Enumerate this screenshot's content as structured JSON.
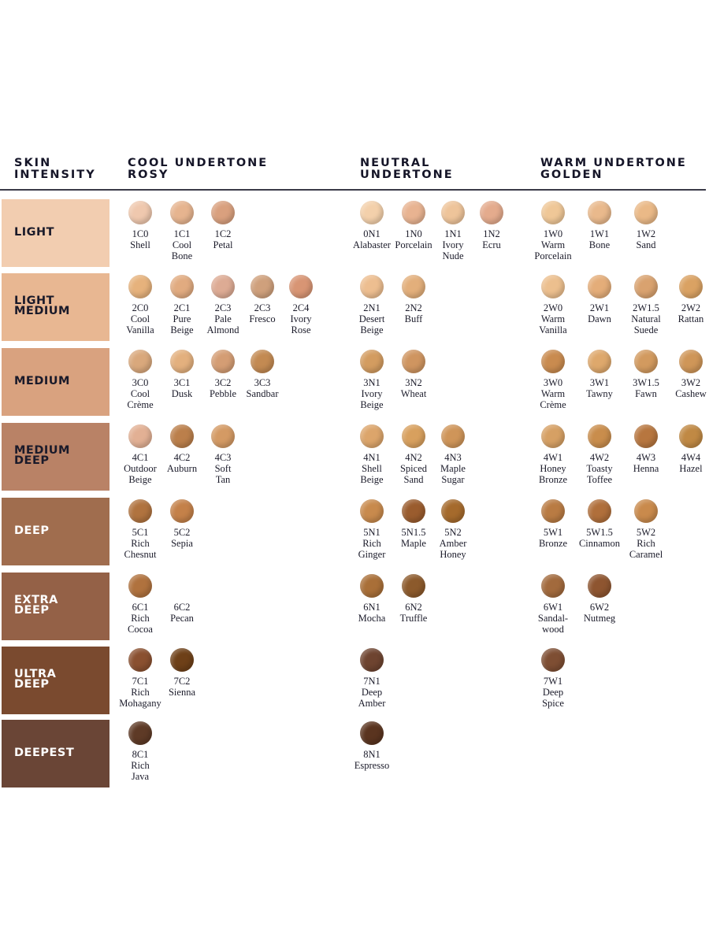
{
  "headers": {
    "skin_intensity": "SKIN\nINTENSITY",
    "cool": "COOL UNDERTONE\nROSY",
    "neutral": "NEUTRAL\nUNDERTONE",
    "warm": "WARM UNDERTONE\nGOLDEN"
  },
  "rows": [
    {
      "label": "LIGHT",
      "color": "#f2cdb0",
      "text_color": "#1a1a2a"
    },
    {
      "label": "LIGHT\nMEDIUM",
      "color": "#e8b792",
      "text_color": "#1a1a2a"
    },
    {
      "label": "MEDIUM",
      "color": "#d9a27f",
      "text_color": "#1a1a2a"
    },
    {
      "label": "MEDIUM\nDEEP",
      "color": "#b98266",
      "text_color": "#1a1a2a"
    },
    {
      "label": "DEEP",
      "color": "#a06d4e",
      "text_color": "#ffffff"
    },
    {
      "label": "EXTRA\nDEEP",
      "color": "#946147",
      "text_color": "#ffffff"
    },
    {
      "label": "ULTRA\nDEEP",
      "color": "#7a4a2f",
      "text_color": "#ffffff"
    },
    {
      "label": "DEEPEST",
      "color": "#6a4536",
      "text_color": "#ffffff"
    }
  ],
  "shades": [
    [
      [
        {
          "code": "1C0",
          "name": "Shell",
          "color": "#efc8ae"
        },
        {
          "code": "1C1",
          "name": "Cool\nBone",
          "color": "#e6b48f"
        },
        {
          "code": "1C2",
          "name": "Petal",
          "color": "#d9a07e"
        }
      ],
      [
        {
          "code": "0N1",
          "name": "Alabaster",
          "color": "#f3d0ab"
        },
        {
          "code": "1N0",
          "name": "Porcelain",
          "color": "#e8b391"
        },
        {
          "code": "1N1",
          "name": "Ivory\nNude",
          "color": "#eec49a"
        },
        {
          "code": "1N2",
          "name": "Ecru",
          "color": "#e4ab8d"
        }
      ],
      [
        {
          "code": "1W0",
          "name": "Warm\nPorcelain",
          "color": "#efc797"
        },
        {
          "code": "1W1",
          "name": "Bone",
          "color": "#e9b98c"
        },
        {
          "code": "1W2",
          "name": "Sand",
          "color": "#eab987"
        }
      ]
    ],
    [
      [
        {
          "code": "2C0",
          "name": "Cool\nVanilla",
          "color": "#e6b27c"
        },
        {
          "code": "2C1",
          "name": "Pure\nBeige",
          "color": "#e1ab80"
        },
        {
          "code": "2C3",
          "name": "Pale\nAlmond",
          "color": "#ddab94"
        },
        {
          "code": "2C3",
          "name": "Fresco",
          "color": "#cfa07c"
        },
        {
          "code": "2C4",
          "name": "Ivory\nRose",
          "color": "#d89574"
        }
      ],
      [
        {
          "code": "2N1",
          "name": "Desert\nBeige",
          "color": "#edbe90"
        },
        {
          "code": "2N2",
          "name": "Buff",
          "color": "#e3af7b"
        }
      ],
      [
        {
          "code": "2W0",
          "name": "Warm\nVanilla",
          "color": "#ecbf8e"
        },
        {
          "code": "2W1",
          "name": "Dawn",
          "color": "#e4ad79"
        },
        {
          "code": "2W1.5",
          "name": "Natural\nSuede",
          "color": "#d9a26f"
        },
        {
          "code": "2W2",
          "name": "Rattan",
          "color": "#daa263"
        }
      ]
    ],
    [
      [
        {
          "code": "3C0",
          "name": "Cool\nCrème",
          "color": "#d9a87c"
        },
        {
          "code": "3C1",
          "name": "Dusk",
          "color": "#e3b07e"
        },
        {
          "code": "3C2",
          "name": "Pebble",
          "color": "#d49d74"
        },
        {
          "code": "3C3",
          "name": "Sandbar",
          "color": "#c38a52"
        }
      ],
      [
        {
          "code": "3N1",
          "name": "Ivory\nBeige",
          "color": "#d39c60"
        },
        {
          "code": "3N2",
          "name": "Wheat",
          "color": "#cf9560"
        }
      ],
      [
        {
          "code": "3W0",
          "name": "Warm\nCrème",
          "color": "#c98b4f"
        },
        {
          "code": "3W1",
          "name": "Tawny",
          "color": "#dea86c"
        },
        {
          "code": "3W1.5",
          "name": "Fawn",
          "color": "#d29a5f"
        },
        {
          "code": "3W2",
          "name": "Cashew",
          "color": "#cf9658"
        }
      ]
    ],
    [
      [
        {
          "code": "4C1",
          "name": "Outdoor\nBeige",
          "color": "#e2b094"
        },
        {
          "code": "4C2",
          "name": "Auburn",
          "color": "#bb7f4b"
        },
        {
          "code": "4C3",
          "name": "Soft\nTan",
          "color": "#d49a64"
        }
      ],
      [
        {
          "code": "4N1",
          "name": "Shell\nBeige",
          "color": "#dca56b"
        },
        {
          "code": "4N2",
          "name": "Spiced\nSand",
          "color": "#d8a05e"
        },
        {
          "code": "4N3",
          "name": "Maple\nSugar",
          "color": "#cf9559"
        }
      ],
      [
        {
          "code": "4W1",
          "name": "Honey\nBronze",
          "color": "#d6a064"
        },
        {
          "code": "4W2",
          "name": "Toasty\nToffee",
          "color": "#c98d4c"
        },
        {
          "code": "4W3",
          "name": "Henna",
          "color": "#b7763f"
        },
        {
          "code": "4W4",
          "name": "Hazel",
          "color": "#c08944"
        }
      ]
    ],
    [
      [
        {
          "code": "5C1",
          "name": "Rich\nChesnut",
          "color": "#b0733f"
        },
        {
          "code": "5C2",
          "name": "Sepia",
          "color": "#c48149"
        }
      ],
      [
        {
          "code": "5N1",
          "name": "Rich\nGinger",
          "color": "#c88a4d"
        },
        {
          "code": "5N1.5",
          "name": "Maple",
          "color": "#9a5c2e"
        },
        {
          "code": "5N2",
          "name": "Amber\nHoney",
          "color": "#a56a2c"
        }
      ],
      [
        {
          "code": "5W1",
          "name": "Bronze",
          "color": "#b97b43"
        },
        {
          "code": "5W1.5",
          "name": "Cinnamon",
          "color": "#b06f3b"
        },
        {
          "code": "5W2",
          "name": "Rich\nCaramel",
          "color": "#c98a4c"
        }
      ]
    ],
    [
      [
        {
          "code": "6C1",
          "name": "Rich\nCocoa",
          "color": "#b0723e"
        },
        {
          "code": "6C2",
          "name": "Pecan",
          "color": null
        }
      ],
      [
        {
          "code": "6N1",
          "name": "Mocha",
          "color": "#a96f38"
        },
        {
          "code": "6N2",
          "name": "Truffle",
          "color": "#8c5a2c"
        }
      ],
      [
        {
          "code": "6W1",
          "name": "Sandal-\nwood",
          "color": "#a26a3d"
        },
        {
          "code": "6W2",
          "name": "Nutmeg",
          "color": "#8e5530"
        }
      ]
    ],
    [
      [
        {
          "code": "7C1",
          "name": "Rich\nMohagany",
          "color": "#8a5030"
        },
        {
          "code": "7C2",
          "name": "Sienna",
          "color": "#6e4018"
        }
      ],
      [
        {
          "code": "7N1",
          "name": "Deep\nAmber",
          "color": "#6e4430"
        }
      ],
      [
        {
          "code": "7W1",
          "name": "Deep\nSpice",
          "color": "#7e4e33"
        }
      ]
    ],
    [
      [
        {
          "code": "8C1",
          "name": "Rich\nJava",
          "color": "#5e3a26"
        }
      ],
      [
        {
          "code": "8N1",
          "name": "Espresso",
          "color": "#5a341f"
        }
      ],
      []
    ]
  ]
}
